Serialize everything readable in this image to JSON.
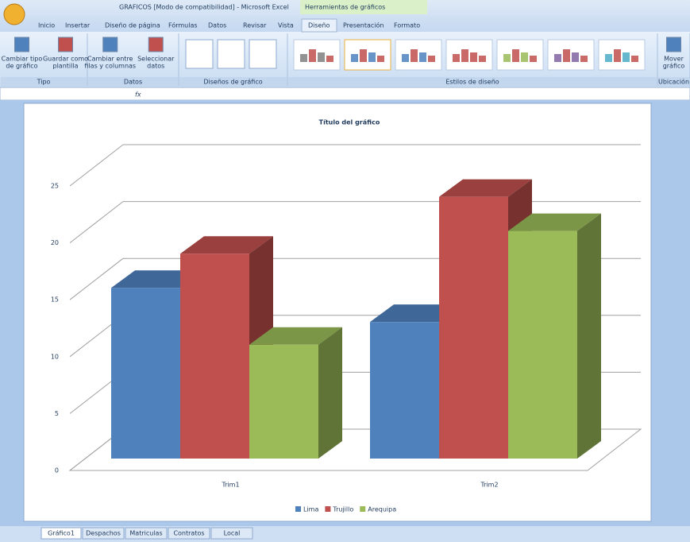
{
  "ui": {
    "title_bar": "GRAFICOS [Modo de compatibilidad] - Microsoft Excel",
    "context_tab": "Herramientas de gráficos",
    "tabs": [
      "Inicio",
      "Insertar",
      "Diseño de página",
      "Fórmulas",
      "Datos",
      "Revisar",
      "Vista",
      "Diseño",
      "Presentación",
      "Formato"
    ],
    "groups": [
      {
        "label": "Tipo",
        "buttons": [
          [
            "Cambiar tipo",
            "de gráfico"
          ],
          [
            "Guardar como",
            "plantilla"
          ]
        ]
      },
      {
        "label": "Datos",
        "buttons": [
          [
            "Cambiar entre",
            "filas y columnas"
          ],
          [
            "Seleccionar",
            "datos"
          ]
        ]
      },
      {
        "label": "Diseños de gráfico"
      },
      {
        "label": "Estilos de diseño"
      },
      {
        "label": "Ubicación",
        "buttons": [
          [
            "Mover",
            "gráfico"
          ]
        ]
      }
    ],
    "formula_fx": "fx",
    "sheet_tabs": [
      "Gráfico1",
      "Despachos",
      "Matriculas",
      "Contratos",
      "Local"
    ]
  },
  "chart_data": {
    "type": "bar3d",
    "title": "Título del gráfico",
    "categories": [
      "Trim1",
      "Trim2"
    ],
    "series": [
      {
        "name": "Lima",
        "color": "#4f81bd",
        "values": [
          15,
          12
        ]
      },
      {
        "name": "Trujillo",
        "color": "#c0504d",
        "values": [
          18,
          23
        ]
      },
      {
        "name": "Arequipa",
        "color": "#9bbb59",
        "values": [
          10,
          20
        ]
      }
    ],
    "ylim": [
      0,
      25
    ],
    "yticks": [
      0,
      5,
      10,
      15,
      20,
      25
    ],
    "grid": true,
    "legend": "bottom"
  }
}
